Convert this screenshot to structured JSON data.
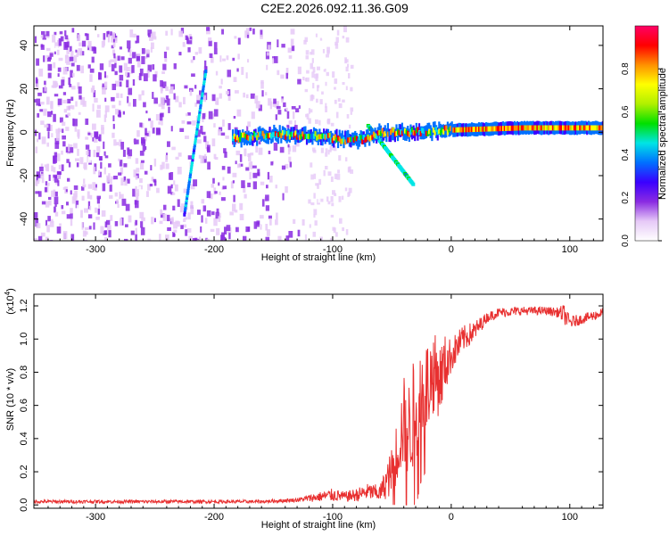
{
  "title": "C2E2.2026.092.11.36.G09",
  "chart_data": [
    {
      "id": "spectrogram",
      "type": "heatmap",
      "xlabel": "Height of straight line (km)",
      "ylabel": "Frequency (Hz)",
      "xlim": [
        -352,
        128
      ],
      "ylim": [
        -50,
        49
      ],
      "xticks": [
        -300,
        -200,
        -100,
        0,
        100
      ],
      "yticks": [
        -40,
        -20,
        0,
        20,
        40
      ],
      "xtick_labels": [
        "-300",
        "-200",
        "-100",
        "0",
        "100"
      ],
      "ytick_labels": [
        "-40",
        "-20",
        "0",
        "20",
        "40"
      ],
      "features": [
        {
          "name": "noise-cloud",
          "x_range": [
            -352,
            -125
          ],
          "y_range": [
            -50,
            49
          ],
          "amplitude": 0.2
        },
        {
          "name": "sparse-noise",
          "x_range": [
            -125,
            -85
          ],
          "y_range": [
            -50,
            49
          ],
          "amplitude": 0.08
        },
        {
          "name": "oblique-streak",
          "from": [
            -225,
            -38
          ],
          "to": [
            -207,
            28
          ],
          "amplitude": 0.3
        },
        {
          "name": "signal-ridge",
          "x_range": [
            -185,
            128
          ],
          "center_hz": [
            [
              -185,
              -3
            ],
            [
              -150,
              -1
            ],
            [
              -110,
              -2
            ],
            [
              -80,
              -4
            ],
            [
              -60,
              0
            ],
            [
              -30,
              0
            ],
            [
              0,
              1
            ],
            [
              60,
              2
            ],
            [
              128,
              2
            ]
          ],
          "amplitude": 0.9
        },
        {
          "name": "chirp-branch",
          "from": [
            -70,
            3
          ],
          "to": [
            -32,
            -24
          ],
          "amplitude": 0.4
        }
      ],
      "colorbar": {
        "label": "Normalized spectral amplitude",
        "range": [
          0,
          1
        ],
        "ticks": [
          0.0,
          0.2,
          0.4,
          0.6,
          0.8
        ],
        "tick_labels": [
          "0.0",
          "0.2",
          "0.4",
          "0.6",
          "0.8"
        ],
        "colors": [
          "#ffffff",
          "#e6c9f7",
          "#8a2be2",
          "#3a00ff",
          "#0070ff",
          "#00e5e5",
          "#00e000",
          "#b0f000",
          "#ffff00",
          "#ff9000",
          "#ff0000",
          "#ff0066"
        ]
      }
    },
    {
      "id": "snr",
      "type": "line",
      "xlabel": "Height of straight line (km)",
      "ylabel": "SNR (10 * v/v)",
      "scale_label_main": "(x10",
      "scale_label_exp": "4",
      "scale_label_close": ")",
      "xlim": [
        -352,
        128
      ],
      "ylim": [
        -0.02,
        1.27
      ],
      "xticks": [
        -300,
        -200,
        -100,
        0,
        100
      ],
      "yticks": [
        0.0,
        0.2,
        0.4,
        0.6,
        0.8,
        1.0,
        1.2
      ],
      "xtick_labels": [
        "-300",
        "-200",
        "-100",
        "0",
        "100"
      ],
      "ytick_labels": [
        "0.0",
        "0.2",
        "0.4",
        "0.6",
        "0.8",
        "1.0",
        "1.2"
      ],
      "series": [
        {
          "name": "SNR",
          "color": "#e83030",
          "x": [
            -352,
            -300,
            -250,
            -200,
            -160,
            -130,
            -110,
            -100,
            -90,
            -80,
            -70,
            -60,
            -50,
            -45,
            -40,
            -35,
            -30,
            -25,
            -20,
            -15,
            -10,
            -5,
            0,
            5,
            10,
            20,
            30,
            40,
            60,
            80,
            90,
            95,
            100,
            110,
            120,
            128
          ],
          "y": [
            0.02,
            0.02,
            0.02,
            0.02,
            0.02,
            0.03,
            0.05,
            0.06,
            0.05,
            0.06,
            0.08,
            0.07,
            0.2,
            0.35,
            0.5,
            0.45,
            0.6,
            0.7,
            0.72,
            0.8,
            0.75,
            0.85,
            0.9,
            0.95,
            1.0,
            1.05,
            1.13,
            1.16,
            1.17,
            1.17,
            1.16,
            1.15,
            1.1,
            1.12,
            1.14,
            1.16
          ],
          "noise": [
            0.01,
            0.01,
            0.01,
            0.01,
            0.01,
            0.012,
            0.03,
            0.04,
            0.03,
            0.04,
            0.05,
            0.05,
            0.15,
            0.2,
            0.28,
            0.3,
            0.35,
            0.3,
            0.28,
            0.25,
            0.22,
            0.18,
            0.1,
            0.1,
            0.08,
            0.06,
            0.03,
            0.03,
            0.025,
            0.025,
            0.03,
            0.06,
            0.04,
            0.03,
            0.03,
            0.03
          ]
        }
      ]
    }
  ]
}
